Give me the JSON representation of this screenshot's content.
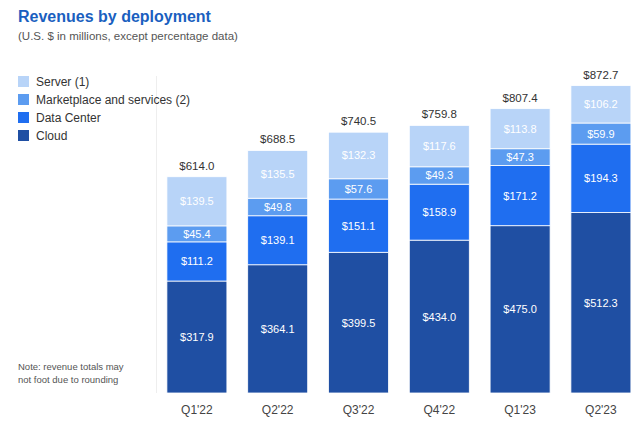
{
  "chart_data": {
    "type": "bar",
    "title": "Revenues by deployment",
    "subtitle": "(U.S. $ in millions, except percentage data)",
    "note": "Note: revenue totals may not foot due to rounding",
    "categories": [
      "Q1'22",
      "Q2'22",
      "Q3'22",
      "Q4'22",
      "Q1'23",
      "Q2'23"
    ],
    "stacked": true,
    "data_labels": true,
    "tick_labels": "x",
    "grid": false,
    "legend": "top-left",
    "ylim": [
      0,
      900
    ],
    "series": [
      {
        "name": "Cloud",
        "color": "#1f4fa3",
        "values": [
          317.9,
          364.1,
          399.5,
          434.0,
          475.0,
          512.3
        ],
        "value_labels": [
          "$317.9",
          "$364.1",
          "$399.5",
          "$434.0",
          "$475.0",
          "$512.3"
        ]
      },
      {
        "name": "Data Center",
        "color": "#1f6ef0",
        "values": [
          111.2,
          139.1,
          151.1,
          158.9,
          171.2,
          194.3
        ],
        "value_labels": [
          "$111.2",
          "$139.1",
          "$151.1",
          "$158.9",
          "$171.2",
          "$194.3"
        ]
      },
      {
        "name": "Marketplace and services (2)",
        "color": "#5c9cf0",
        "values": [
          45.4,
          49.8,
          57.6,
          49.3,
          47.3,
          59.9
        ],
        "value_labels": [
          "$45.4",
          "$49.8",
          "$57.6",
          "$49.3",
          "$47.3",
          "$59.9"
        ]
      },
      {
        "name": "Server (1)",
        "color": "#b8d4f8",
        "values": [
          139.5,
          135.5,
          132.3,
          117.6,
          113.8,
          106.2
        ],
        "value_labels": [
          "$139.5",
          "$135.5",
          "$132.3",
          "$117.6",
          "$113.8",
          "$106.2"
        ]
      }
    ],
    "totals": [
      614.0,
      688.5,
      740.5,
      759.8,
      807.4,
      872.7
    ],
    "total_labels": [
      "$614.0",
      "$688.5",
      "$740.5",
      "$759.8",
      "$807.4",
      "$872.7"
    ]
  }
}
